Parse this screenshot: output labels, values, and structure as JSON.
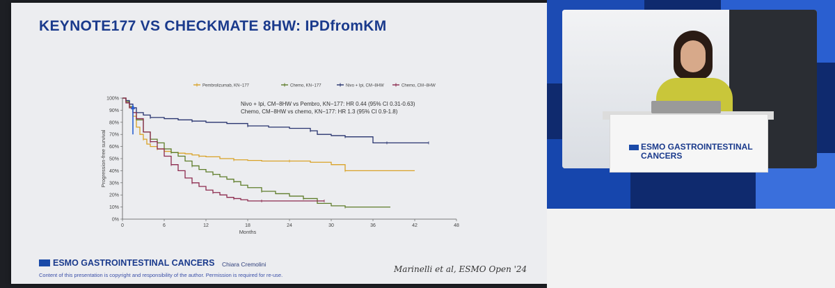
{
  "slide": {
    "title": "KEYNOTE177 VS CHECKMATE 8HW: IPDfromKM",
    "footer_logo": "ESMO GASTROINTESTINAL CANCERS",
    "author": "Chiara Cremolini",
    "reference": "Marinelli et al, ESMO Open '24",
    "copyright": "Content of this presentation is copyright and responsibility of the author. Permission is required for re-use."
  },
  "stage": {
    "podium_line1": "ESMO GASTROINTESTINAL",
    "podium_line2": "CANCERS"
  },
  "chart_data": {
    "type": "line",
    "xlabel": "Months",
    "ylabel": "Progression-free survival",
    "xlim": [
      0,
      48
    ],
    "ylim": [
      0,
      100
    ],
    "xticks": [
      0,
      6,
      12,
      18,
      24,
      30,
      36,
      42,
      48
    ],
    "yticks": [
      0,
      10,
      20,
      30,
      40,
      50,
      60,
      70,
      80,
      90,
      100
    ],
    "tick_suffix": "%",
    "legend_position": "top",
    "annotations": [
      "Nivo + Ipi, CM−8HW vs Pembro, KN−177: HR 0.44 (95% CI 0.31-0.63)",
      "Chemo, CM−8HW vs chemo, KN−177: HR 1.3 (95% CI 0.9-1.8)"
    ],
    "colors": {
      "pembro": "#d9a227",
      "chemo_kn": "#5e7d2a",
      "nivo": "#27336e",
      "chemo_cm": "#8c2a4e"
    },
    "series": [
      {
        "name": "Pembrolizumab, KN−177",
        "key": "pembro",
        "x": [
          0,
          0.5,
          1,
          1.5,
          2,
          2.5,
          3,
          3.5,
          4,
          5,
          6,
          7,
          8,
          9,
          10,
          11,
          12,
          14,
          16,
          18,
          20,
          24,
          27,
          30,
          32,
          36,
          42
        ],
        "y": [
          100,
          97,
          92,
          85,
          76,
          70,
          66,
          62,
          60,
          58,
          56,
          55,
          54.5,
          54,
          53,
          52,
          51.5,
          50,
          49,
          48.5,
          48,
          48,
          47,
          45,
          40,
          40,
          40
        ]
      },
      {
        "name": "Chemo, KN−177",
        "key": "chemo_kn",
        "x": [
          0,
          0.5,
          1,
          1.5,
          2,
          3,
          4,
          5,
          6,
          7,
          8,
          9,
          10,
          11,
          12,
          13,
          14,
          15,
          16,
          17,
          18,
          20,
          22,
          24,
          26,
          28,
          30,
          32,
          36,
          38.5
        ],
        "y": [
          100,
          97,
          93,
          88,
          82,
          72,
          66,
          63,
          58,
          55,
          52,
          48,
          44,
          41,
          39,
          37,
          35,
          33,
          31,
          28,
          26,
          23,
          21,
          19,
          17,
          13,
          11,
          10,
          10,
          10
        ]
      },
      {
        "name": "Nivo + Ipi, CM−8HW",
        "key": "nivo",
        "x": [
          0,
          0.5,
          1,
          1.5,
          2,
          3,
          4,
          6,
          8,
          10,
          12,
          15,
          18,
          21,
          24,
          27,
          28,
          30,
          32,
          34,
          36,
          38,
          40,
          42,
          44
        ],
        "y": [
          100,
          98,
          95,
          92,
          88,
          86,
          84,
          83,
          82,
          81,
          80,
          79,
          77,
          76,
          75,
          73,
          70,
          69,
          68,
          68,
          63,
          63,
          63,
          63,
          63
        ]
      },
      {
        "name": "Chemo, CM−8HW",
        "key": "chemo_cm",
        "x": [
          0,
          0.5,
          1,
          1.5,
          2,
          3,
          4,
          5,
          6,
          7,
          8,
          9,
          10,
          11,
          12,
          13,
          14,
          15,
          16,
          17,
          18,
          20,
          24,
          27,
          29
        ],
        "y": [
          100,
          96,
          92,
          88,
          83,
          72,
          64,
          58,
          52,
          45,
          40,
          34,
          30,
          27,
          24,
          22,
          20,
          18,
          17,
          16,
          15,
          15,
          15,
          15,
          15
        ]
      }
    ]
  }
}
